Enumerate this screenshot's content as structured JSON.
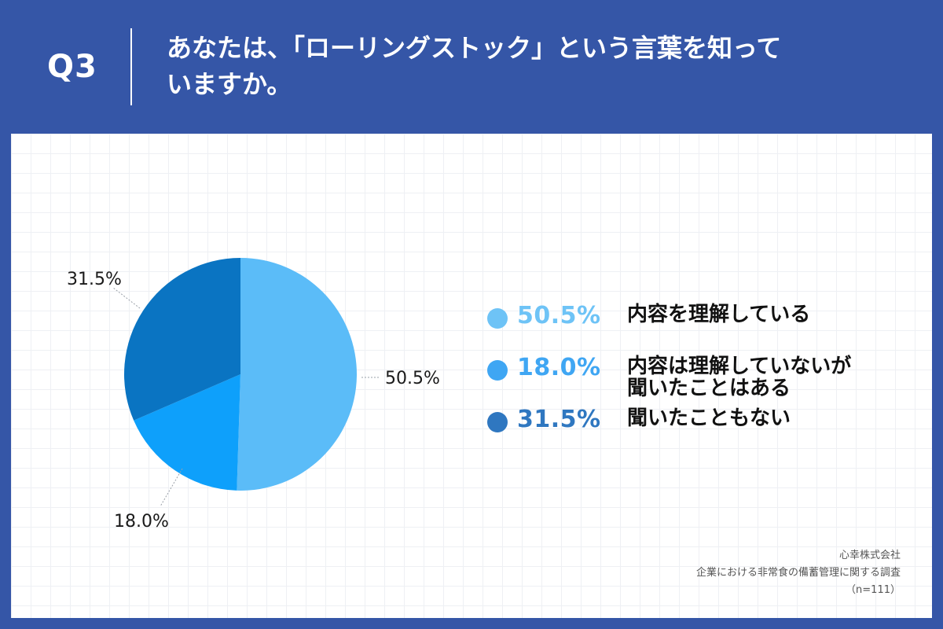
{
  "header": {
    "question_label": "Q3",
    "title_line1": "あなたは、「ローリングストック」という言葉を知って",
    "title_line2": "いますか。"
  },
  "chart_data": {
    "type": "pie",
    "categories": [
      "内容を理解している",
      "内容は理解していないが聞いたことはある",
      "聞いたこともない"
    ],
    "values": [
      50.5,
      18.0,
      31.5
    ],
    "value_labels": [
      "50.5%",
      "18.0%",
      "31.5%"
    ],
    "colors": [
      "#5bbcf8",
      "#0ea0fb",
      "#0a74c2"
    ],
    "legend_colors": [
      "#6ec3f6",
      "#3fa6f3",
      "#2f77c0"
    ],
    "legend_placement": "right"
  },
  "legend": [
    {
      "pct": "50.5%",
      "text_line1": "内容を理解している",
      "text_line2": ""
    },
    {
      "pct": "18.0%",
      "text_line1": "内容は理解していないが",
      "text_line2": "聞いたことはある"
    },
    {
      "pct": "31.5%",
      "text_line1": "聞いたこともない",
      "text_line2": ""
    }
  ],
  "footer": {
    "company": "心幸株式会社",
    "survey": "企業における非常食の備蓄管理に関する調査",
    "sample": "（n=111）"
  }
}
